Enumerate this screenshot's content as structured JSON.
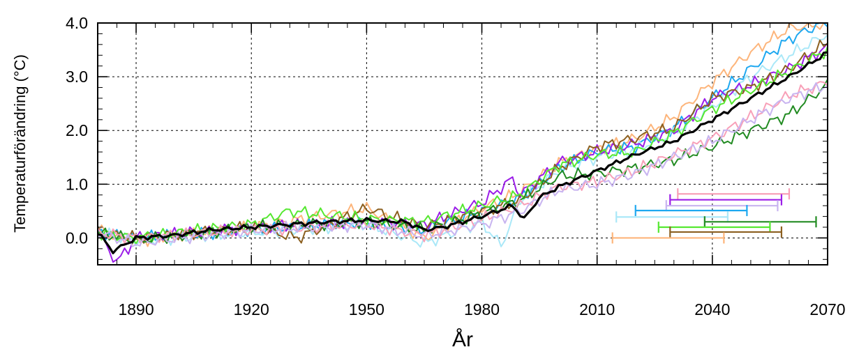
{
  "chart_data": {
    "type": "line",
    "xlabel": "År",
    "ylabel": "Temperaturförändring (°C)",
    "xlim": [
      1880,
      2070
    ],
    "ylim": [
      -0.5,
      4.0
    ],
    "xticks": [
      "1890",
      "1920",
      "1950",
      "1980",
      "2010",
      "2040",
      "2070"
    ],
    "yticks": [
      "0.0",
      "1.0",
      "2.0",
      "3.0",
      "4.0"
    ],
    "grid": true,
    "series": [
      {
        "color": "#fdb57b",
        "points": [
          [
            1880,
            0.15
          ],
          [
            1890,
            -0.05
          ],
          [
            1920,
            0.2
          ],
          [
            1950,
            0.55
          ],
          [
            1965,
            0.0
          ],
          [
            1980,
            0.55
          ],
          [
            1990,
            0.85
          ],
          [
            2000,
            1.4
          ],
          [
            2010,
            1.65
          ],
          [
            2020,
            1.85
          ],
          [
            2030,
            2.25
          ],
          [
            2040,
            2.9
          ],
          [
            2050,
            3.45
          ],
          [
            2060,
            3.9
          ],
          [
            2070,
            4.0
          ]
        ]
      },
      {
        "color": "#1ea8f0",
        "points": [
          [
            1880,
            0.1
          ],
          [
            1890,
            0.0
          ],
          [
            1920,
            0.15
          ],
          [
            1950,
            0.3
          ],
          [
            1965,
            0.15
          ],
          [
            1980,
            0.5
          ],
          [
            1990,
            0.75
          ],
          [
            2000,
            1.3
          ],
          [
            2010,
            1.6
          ],
          [
            2020,
            1.7
          ],
          [
            2030,
            2.05
          ],
          [
            2040,
            2.6
          ],
          [
            2050,
            3.15
          ],
          [
            2060,
            3.7
          ],
          [
            2070,
            4.05
          ]
        ]
      },
      {
        "color": "#aae8f8",
        "points": [
          [
            1880,
            0.1
          ],
          [
            1890,
            -0.05
          ],
          [
            1920,
            0.1
          ],
          [
            1950,
            0.25
          ],
          [
            1965,
            -0.1
          ],
          [
            1980,
            0.3
          ],
          [
            1985,
            -0.15
          ],
          [
            1990,
            0.7
          ],
          [
            2000,
            1.25
          ],
          [
            2010,
            1.5
          ],
          [
            2020,
            1.65
          ],
          [
            2030,
            1.95
          ],
          [
            2040,
            2.45
          ],
          [
            2050,
            3.0
          ],
          [
            2060,
            3.4
          ],
          [
            2070,
            3.8
          ]
        ]
      },
      {
        "color": "#9b1ee8",
        "points": [
          [
            1880,
            0.1
          ],
          [
            1885,
            -0.45
          ],
          [
            1890,
            0.0
          ],
          [
            1920,
            0.2
          ],
          [
            1950,
            0.3
          ],
          [
            1965,
            0.25
          ],
          [
            1980,
            0.65
          ],
          [
            1988,
            1.1
          ],
          [
            1990,
            0.8
          ],
          [
            2000,
            1.4
          ],
          [
            2010,
            1.6
          ],
          [
            2020,
            1.75
          ],
          [
            2030,
            2.0
          ],
          [
            2040,
            2.6
          ],
          [
            2050,
            2.85
          ],
          [
            2060,
            3.15
          ],
          [
            2070,
            3.55
          ]
        ]
      },
      {
        "color": "#8c6020",
        "points": [
          [
            1880,
            0.1
          ],
          [
            1890,
            0.0
          ],
          [
            1920,
            0.2
          ],
          [
            1932,
            0.0
          ],
          [
            1950,
            0.55
          ],
          [
            1965,
            0.2
          ],
          [
            1980,
            0.5
          ],
          [
            1990,
            0.7
          ],
          [
            2000,
            1.3
          ],
          [
            2010,
            1.7
          ],
          [
            2020,
            1.85
          ],
          [
            2030,
            2.05
          ],
          [
            2040,
            2.6
          ],
          [
            2050,
            2.8
          ],
          [
            2060,
            3.15
          ],
          [
            2070,
            3.65
          ]
        ]
      },
      {
        "color": "#55e830",
        "points": [
          [
            1880,
            0.1
          ],
          [
            1890,
            0.0
          ],
          [
            1920,
            0.25
          ],
          [
            1930,
            0.5
          ],
          [
            1950,
            0.35
          ],
          [
            1965,
            0.3
          ],
          [
            1980,
            0.6
          ],
          [
            1990,
            0.8
          ],
          [
            2000,
            1.35
          ],
          [
            2010,
            1.55
          ],
          [
            2020,
            1.6
          ],
          [
            2030,
            1.95
          ],
          [
            2040,
            2.4
          ],
          [
            2050,
            2.75
          ],
          [
            2060,
            3.1
          ],
          [
            2070,
            3.5
          ]
        ]
      },
      {
        "color": "#228b22",
        "points": [
          [
            1880,
            0.1
          ],
          [
            1890,
            -0.05
          ],
          [
            1920,
            0.2
          ],
          [
            1950,
            0.3
          ],
          [
            1965,
            0.15
          ],
          [
            1980,
            0.45
          ],
          [
            1990,
            0.7
          ],
          [
            2000,
            1.15
          ],
          [
            2010,
            1.2
          ],
          [
            2020,
            1.3
          ],
          [
            2030,
            1.45
          ],
          [
            2040,
            1.7
          ],
          [
            2050,
            2.0
          ],
          [
            2060,
            2.3
          ],
          [
            2070,
            2.85
          ]
        ]
      },
      {
        "color": "#f8a0b8",
        "points": [
          [
            1880,
            0.1
          ],
          [
            1890,
            0.0
          ],
          [
            1920,
            0.15
          ],
          [
            1950,
            0.25
          ],
          [
            1965,
            0.05
          ],
          [
            1980,
            0.35
          ],
          [
            1990,
            0.6
          ],
          [
            2000,
            0.95
          ],
          [
            2010,
            1.05
          ],
          [
            2020,
            1.25
          ],
          [
            2030,
            1.55
          ],
          [
            2040,
            1.85
          ],
          [
            2050,
            2.25
          ],
          [
            2060,
            2.65
          ],
          [
            2070,
            2.9
          ]
        ]
      },
      {
        "color": "#c8b4f0",
        "points": [
          [
            1880,
            0.1
          ],
          [
            1890,
            -0.1
          ],
          [
            1920,
            0.15
          ],
          [
            1950,
            0.25
          ],
          [
            1965,
            0.05
          ],
          [
            1980,
            0.25
          ],
          [
            1990,
            0.5
          ],
          [
            2000,
            0.9
          ],
          [
            2010,
            1.0
          ],
          [
            2020,
            1.2
          ],
          [
            2030,
            1.5
          ],
          [
            2040,
            1.8
          ],
          [
            2050,
            2.2
          ],
          [
            2060,
            2.6
          ],
          [
            2070,
            2.85
          ]
        ]
      },
      {
        "color": "#000000",
        "width": 3.2,
        "points": [
          [
            1880,
            0.1
          ],
          [
            1884,
            -0.25
          ],
          [
            1890,
            0.0
          ],
          [
            1900,
            0.05
          ],
          [
            1910,
            0.15
          ],
          [
            1920,
            0.2
          ],
          [
            1930,
            0.25
          ],
          [
            1940,
            0.3
          ],
          [
            1950,
            0.33
          ],
          [
            1960,
            0.3
          ],
          [
            1965,
            0.15
          ],
          [
            1970,
            0.2
          ],
          [
            1980,
            0.4
          ],
          [
            1988,
            0.6
          ],
          [
            1991,
            0.35
          ],
          [
            1995,
            0.75
          ],
          [
            2000,
            0.95
          ],
          [
            2010,
            1.25
          ],
          [
            2020,
            1.55
          ],
          [
            2030,
            1.8
          ],
          [
            2040,
            2.2
          ],
          [
            2050,
            2.6
          ],
          [
            2060,
            3.0
          ],
          [
            2070,
            3.45
          ]
        ]
      }
    ],
    "ranges": [
      {
        "color": "#f8a0b8",
        "x": [
          2031,
          2060
        ],
        "y": 0.82
      },
      {
        "color": "#9b1ee8",
        "x": [
          2029,
          2058
        ],
        "y": 0.71
      },
      {
        "color": "#c8b4f0",
        "x": [
          2028,
          2057
        ],
        "y": 0.6
      },
      {
        "color": "#1ea8f0",
        "x": [
          2020,
          2049
        ],
        "y": 0.51
      },
      {
        "color": "#aae8f8",
        "x": [
          2015,
          2044
        ],
        "y": 0.39
      },
      {
        "color": "#228b22",
        "x": [
          2038,
          2067
        ],
        "y": 0.3
      },
      {
        "color": "#55e830",
        "x": [
          2026,
          2055
        ],
        "y": 0.2
      },
      {
        "color": "#8c6020",
        "x": [
          2029,
          2058
        ],
        "y": 0.11
      },
      {
        "color": "#fdb57b",
        "x": [
          2014,
          2043
        ],
        "y": 0.0
      }
    ]
  }
}
